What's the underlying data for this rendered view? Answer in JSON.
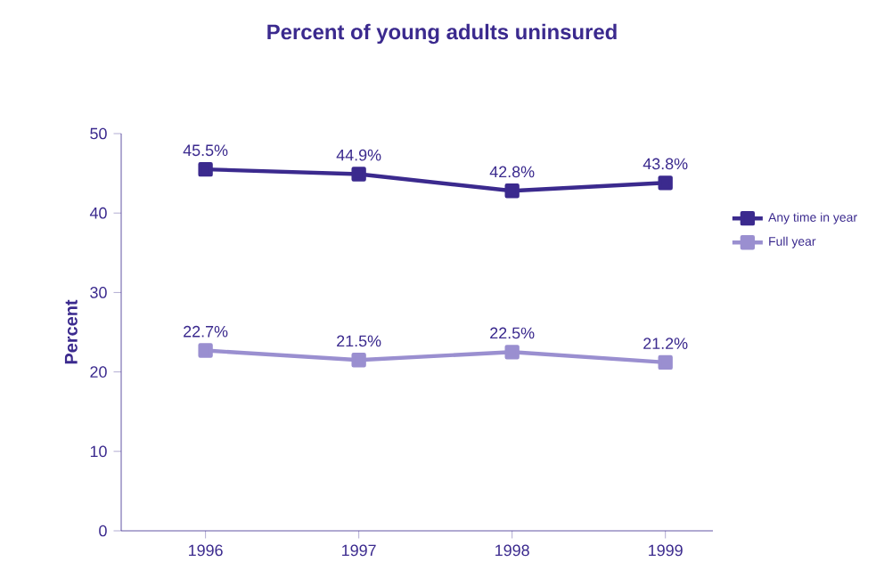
{
  "chart_data": {
    "type": "line",
    "title": "Percent of young adults uninsured",
    "ylabel": "Percent",
    "categories": [
      "1996",
      "1997",
      "1998",
      "1999"
    ],
    "series": [
      {
        "name": "Any time in year",
        "color": "#3b2a8e",
        "values": [
          45.5,
          44.9,
          42.8,
          43.8
        ],
        "value_labels": [
          "45.5%",
          "44.9%",
          "42.8%",
          "43.8%"
        ]
      },
      {
        "name": "Full year",
        "color": "#9a8fd0",
        "values": [
          22.7,
          21.5,
          22.5,
          21.2
        ],
        "value_labels": [
          "22.7%",
          "21.5%",
          "22.5%",
          "21.2%"
        ]
      }
    ],
    "ylim": [
      0,
      50
    ],
    "yticks": [
      0,
      10,
      20,
      30,
      40,
      50
    ],
    "grid": false,
    "legend": "right",
    "marker": "square",
    "line_style": "solid"
  }
}
